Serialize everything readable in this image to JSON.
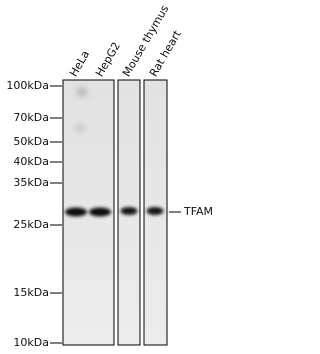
{
  "lanes": [
    "HeLa",
    "HepG2",
    "Mouse thymus",
    "Rat heart"
  ],
  "markers": [
    "100kDa",
    "70kDa",
    "50kDa",
    "40kDa",
    "35kDa",
    "25kDa",
    "15kDa",
    "10kDa"
  ],
  "band_label": "TFAM"
}
